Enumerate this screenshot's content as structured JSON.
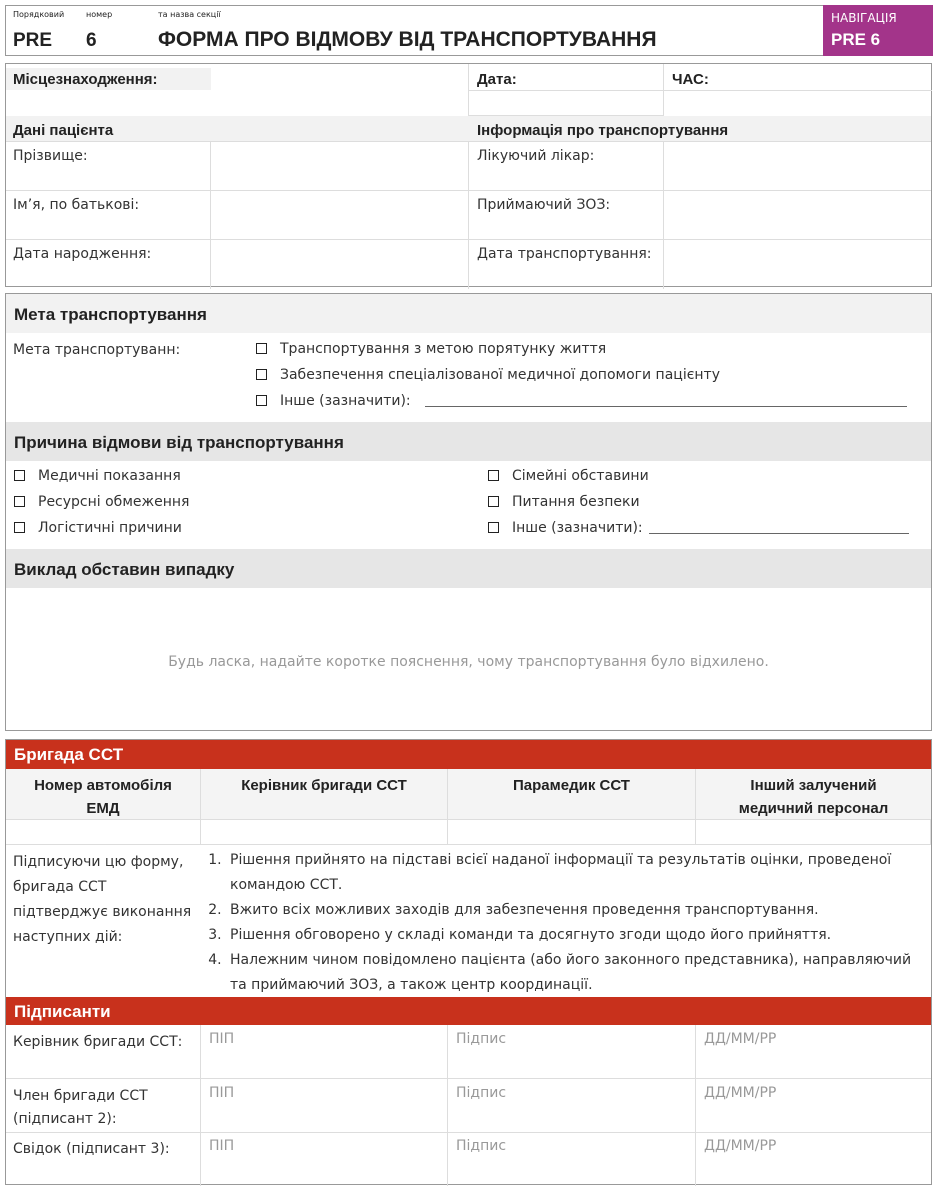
{
  "header": {
    "caption_number": "Порядковий",
    "caption_num": "номер",
    "caption_title": "та назва секції",
    "code": "PRE",
    "number": "6",
    "title": "ФОРМА  ПРО ВІДМОВУ ВІД ТРАНСПОРТУВАННЯ",
    "nav_label": "НАВІГАЦІЯ",
    "nav_code": "PRE 6",
    "nav_color": "#a3348a"
  },
  "general": {
    "location": "Місцезнаходження:",
    "date": "Дата:",
    "time": "ЧАС:"
  },
  "patient": {
    "title": "Дані пацієнта",
    "fields": [
      "Прізвище:",
      "Ім’я, по батькові:",
      "Дата народження:"
    ]
  },
  "transport": {
    "title": "Інформація про транспортування",
    "fields": [
      "Лікуючий лікар:",
      "Приймаючий ЗОЗ:",
      "Дата транспортування:"
    ]
  },
  "purpose": {
    "title": "Мета транспортування",
    "label": "Мета транспортуванн:",
    "options": [
      "Транспортування з метою порятунку життя",
      "Забезпечення спеціалізованої медичної допомоги пацієнту",
      "Інше (зазначити):"
    ]
  },
  "reason": {
    "title": "Причина відмови від транспортування",
    "left": [
      "Медичні показання",
      "Ресурсні обмеження",
      "Логістичні причини"
    ],
    "right": [
      "Сімейні обставини",
      "Питання безпеки",
      "Інше (зазначити):"
    ]
  },
  "statement": {
    "title": "Виклад обставин випадку",
    "placeholder": "Будь ласка, надайте коротке пояснення, чому транспортування було відхилено."
  },
  "crew": {
    "title": "Бригада ССТ",
    "accent": "#c8311c",
    "columns": [
      "Номер автомобіля ЕМД",
      "Керівник бригади ССТ",
      "Парамедик ССТ",
      "Інший залучений медичний персонал"
    ],
    "confirm_label": "Підписуючи цю форму, бригада ССТ підтверджує виконання наступних дій:",
    "confirm_items": [
      "Рішення прийнято на підставі всієї наданої інформації та результатів оцінки, проведеної командою ССТ.",
      "Вжито всіх можливих заходів для забезпечення проведення транспортування.",
      "Рішення обговорено у складі команди та досягнуто згоди щодо його прийняття.",
      "Належним чином повідомлено пацієнта (або його законного представника), направляючий та приймаючий ЗОЗ, а також центр координації."
    ]
  },
  "signers": {
    "title": "Підписанти",
    "rows": [
      {
        "role": "Керівник бригади ССТ:",
        "name": "ПІП",
        "sign": "Підпис",
        "date": "ДД/ММ/РР"
      },
      {
        "role": "Член бригади ССТ (підписант 2):",
        "name": "ПІП",
        "sign": "Підпис",
        "date": "ДД/ММ/РР"
      },
      {
        "role": "Свідок (підписант 3):",
        "name": "ПІП",
        "sign": "Підпис",
        "date": "ДД/ММ/РР"
      }
    ]
  }
}
